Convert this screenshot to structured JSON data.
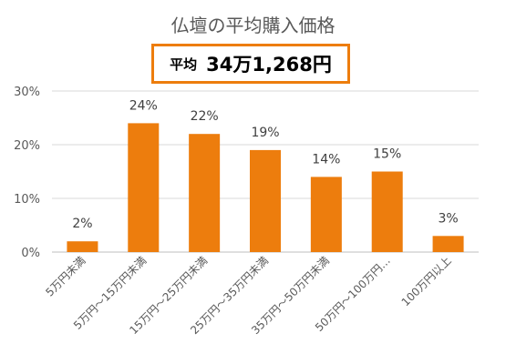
{
  "title": "仏壇の平均購入価格",
  "average": {
    "label": "平均",
    "value": "34万1,268円"
  },
  "colors": {
    "bar": "#ed7d0d",
    "grid": "#d9d9d9",
    "axis": "#bfbfbf"
  },
  "chart_data": {
    "type": "bar",
    "categories": [
      "5万円未満",
      "5万円～15万円未満",
      "15万円～25万円未満",
      "25万円～35万円未満",
      "35万円～50万円未満",
      "50万円～100万円…",
      "100万円以上"
    ],
    "values": [
      2,
      24,
      22,
      19,
      14,
      15,
      3
    ],
    "data_labels": [
      "2%",
      "24%",
      "22%",
      "19%",
      "14%",
      "15%",
      "3%"
    ],
    "ylim": [
      0,
      30
    ],
    "yticks": [
      0,
      10,
      20,
      30
    ],
    "ytick_labels": [
      "0%",
      "10%",
      "20%",
      "30%"
    ],
    "grid": true
  }
}
